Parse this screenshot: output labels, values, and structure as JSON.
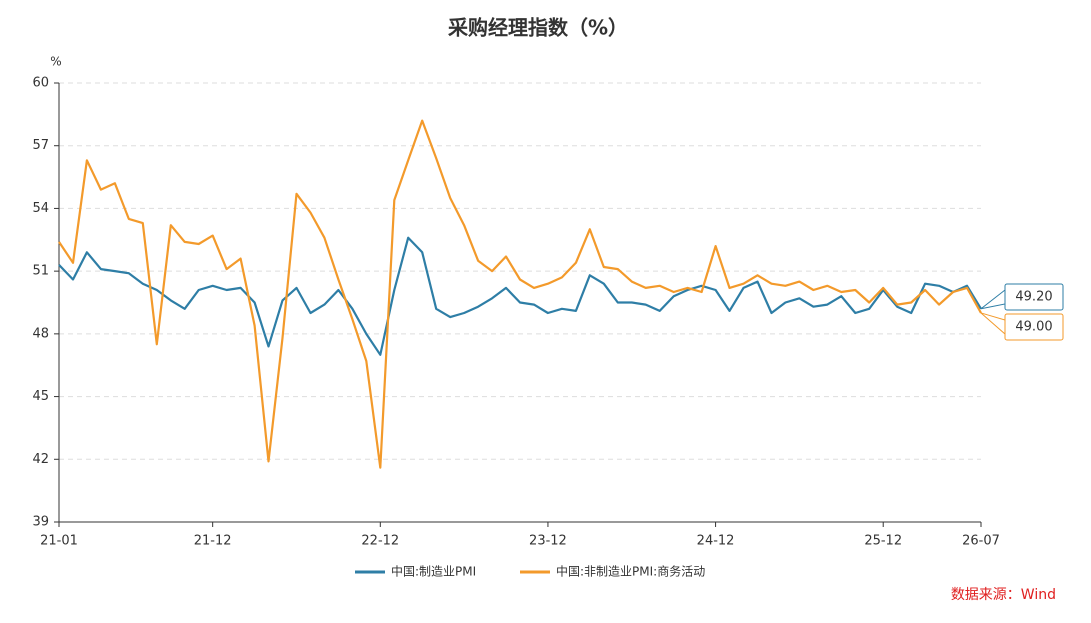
{
  "chart_data": {
    "type": "line",
    "title": "采购经理指数（%）",
    "y_unit": "%",
    "source": "数据来源：Wind",
    "categories": [
      "21-01",
      null,
      null,
      null,
      null,
      null,
      null,
      null,
      null,
      null,
      null,
      "21-12",
      null,
      null,
      null,
      null,
      null,
      null,
      null,
      null,
      null,
      null,
      null,
      "22-12",
      null,
      null,
      null,
      null,
      null,
      null,
      null,
      null,
      null,
      null,
      null,
      "23-12",
      null,
      null,
      null,
      null,
      null,
      null,
      null,
      null,
      null,
      null,
      null,
      "24-12",
      null,
      null,
      null,
      null,
      null,
      null,
      null,
      null,
      null,
      null,
      null,
      "25-12",
      null,
      null,
      null,
      null,
      null,
      null,
      "26-07"
    ],
    "series": [
      {
        "name": "中国:制造业PMI",
        "color": "#2e7ea6",
        "values": [
          51.3,
          50.6,
          51.9,
          51.1,
          51.0,
          50.9,
          50.4,
          50.1,
          49.6,
          49.2,
          50.1,
          50.3,
          50.1,
          50.2,
          49.5,
          47.4,
          49.6,
          50.2,
          49.0,
          49.4,
          50.1,
          49.2,
          48.0,
          47.0,
          50.1,
          52.6,
          51.9,
          49.2,
          48.8,
          49.0,
          49.3,
          49.7,
          50.2,
          49.5,
          49.4,
          49.0,
          49.2,
          49.1,
          50.8,
          50.4,
          49.5,
          49.5,
          49.4,
          49.1,
          49.8,
          50.1,
          50.3,
          50.1,
          49.1,
          50.2,
          50.5,
          49.0,
          49.5,
          49.7,
          49.3,
          49.4,
          49.8,
          49.0,
          49.2,
          50.1,
          49.3,
          49.0,
          50.4,
          50.3,
          50.0,
          50.3,
          49.2
        ],
        "value_labels": [
          null,
          null,
          null,
          null,
          null,
          null,
          null,
          null,
          null,
          null,
          null,
          null,
          null,
          null,
          null,
          null,
          null,
          null,
          null,
          null,
          null,
          null,
          null,
          null,
          null,
          null,
          null,
          null,
          null,
          null,
          null,
          null,
          null,
          null,
          null,
          null,
          null,
          null,
          null,
          null,
          null,
          null,
          null,
          null,
          null,
          null,
          null,
          null,
          null,
          null,
          null,
          null,
          null,
          null,
          null,
          null,
          null,
          null,
          null,
          null,
          null,
          null,
          null,
          null,
          null,
          null,
          "49.20"
        ]
      },
      {
        "name": "中国:非制造业PMI:商务活动",
        "color": "#f39a2b",
        "values": [
          52.4,
          51.4,
          56.3,
          54.9,
          55.2,
          53.5,
          53.3,
          47.5,
          53.2,
          52.4,
          52.3,
          52.7,
          51.1,
          51.6,
          48.4,
          41.9,
          47.8,
          54.7,
          53.8,
          52.6,
          50.6,
          48.7,
          46.7,
          41.6,
          54.4,
          56.3,
          58.2,
          56.4,
          54.5,
          53.2,
          51.5,
          51.0,
          51.7,
          50.6,
          50.2,
          50.4,
          50.7,
          51.4,
          53.0,
          51.2,
          51.1,
          50.5,
          50.2,
          50.3,
          50.0,
          50.2,
          50.0,
          52.2,
          50.2,
          50.4,
          50.8,
          50.4,
          50.3,
          50.5,
          50.1,
          50.3,
          50.0,
          50.1,
          49.5,
          50.2,
          49.4,
          49.5,
          50.1,
          49.4,
          50.0,
          50.2,
          49.0
        ],
        "value_labels": [
          null,
          null,
          null,
          null,
          null,
          null,
          null,
          null,
          null,
          null,
          null,
          null,
          null,
          null,
          null,
          null,
          null,
          null,
          null,
          null,
          null,
          null,
          null,
          null,
          null,
          null,
          null,
          null,
          null,
          null,
          null,
          null,
          null,
          null,
          null,
          null,
          null,
          null,
          null,
          null,
          null,
          null,
          null,
          null,
          null,
          null,
          null,
          null,
          null,
          null,
          null,
          null,
          null,
          null,
          null,
          null,
          null,
          null,
          null,
          null,
          null,
          null,
          null,
          null,
          null,
          null,
          "49.00"
        ]
      }
    ],
    "ylim": [
      39,
      60
    ],
    "yticks": [
      39,
      42,
      45,
      48,
      51,
      54,
      57,
      60
    ],
    "grid": true
  }
}
